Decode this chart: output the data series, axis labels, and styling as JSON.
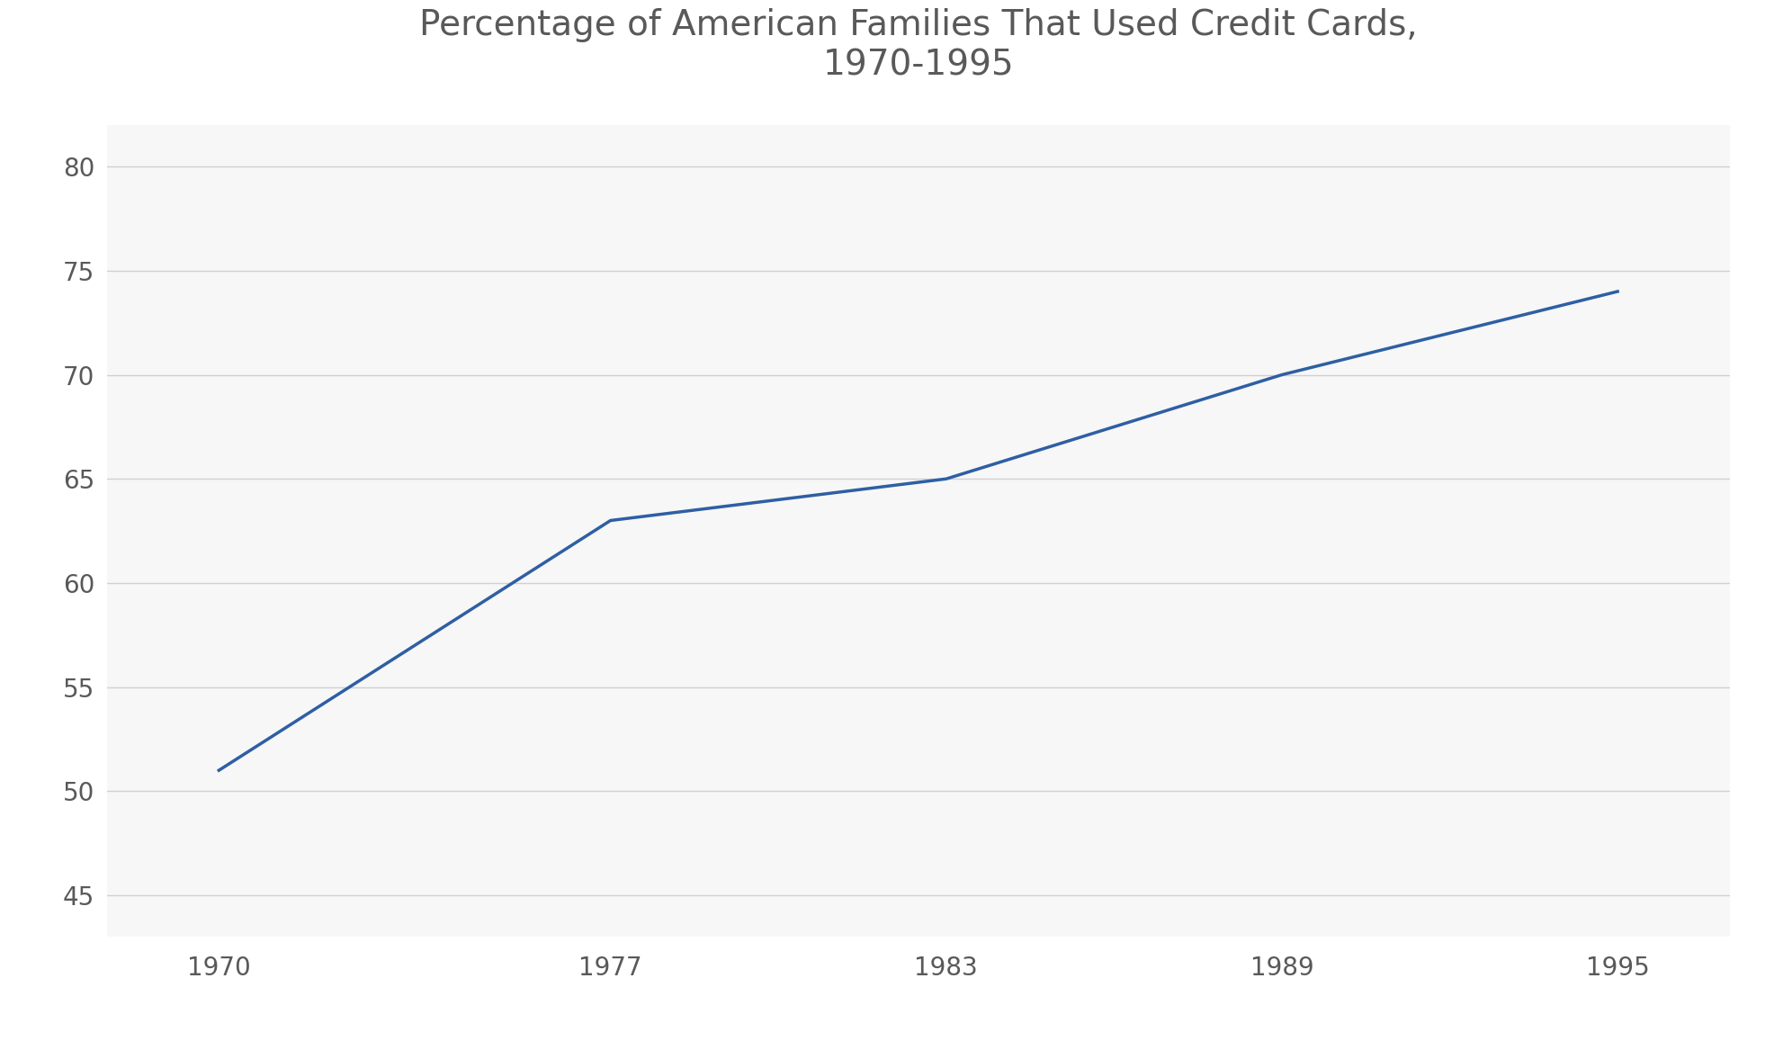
{
  "title": "Percentage of American Families That Used Credit Cards,\n1970-1995",
  "x_values": [
    1970,
    1977,
    1980,
    1983,
    1989,
    1995
  ],
  "y_values": [
    51,
    63,
    64,
    65,
    70,
    74
  ],
  "line_color": "#2E5FA3",
  "line_width": 2.5,
  "background_color": "#FFFFFF",
  "plot_bg_color": "#F7F7F7",
  "ylim": [
    43,
    82
  ],
  "yticks": [
    45,
    50,
    55,
    60,
    65,
    70,
    75,
    80
  ],
  "xticks": [
    1970,
    1977,
    1983,
    1989,
    1995
  ],
  "title_fontsize": 28,
  "tick_fontsize": 20,
  "grid_color": "#D0D0D0",
  "grid_linewidth": 1.0,
  "title_color": "#595959"
}
